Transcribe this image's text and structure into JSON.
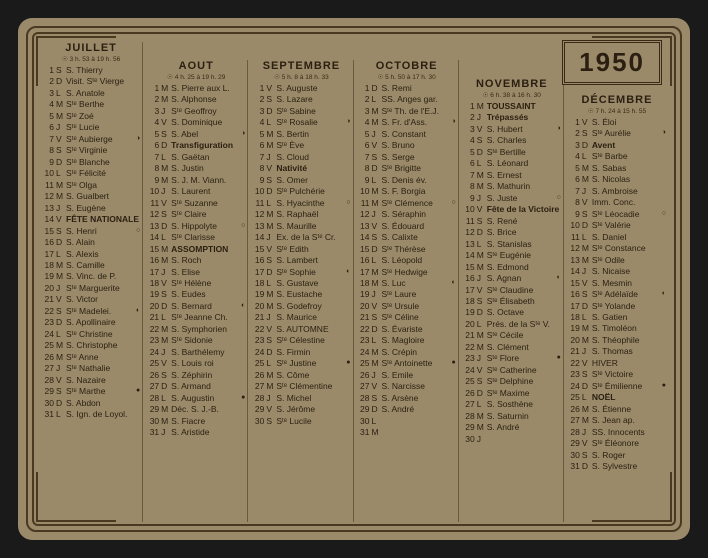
{
  "year": "1950",
  "months": [
    {
      "name": "JUILLET",
      "sunrise": "☉ 3 h. 53 à 19 h. 56",
      "offset": "offset-0",
      "days": [
        {
          "n": "1",
          "w": "S",
          "s": "S. Thierry"
        },
        {
          "n": "2",
          "w": "D",
          "s": "Visit. Sᵗᵉ Vierge"
        },
        {
          "n": "3",
          "w": "L",
          "s": "S. Anatole"
        },
        {
          "n": "4",
          "w": "M",
          "s": "Sᵗᵉ Berthe"
        },
        {
          "n": "5",
          "w": "M",
          "s": "Sᵗᵉ Zoé"
        },
        {
          "n": "6",
          "w": "J",
          "s": "Sᵗᵉ Lucie"
        },
        {
          "n": "7",
          "w": "V",
          "s": "Sᵗᵉ Aubierge",
          "m": "◑"
        },
        {
          "n": "8",
          "w": "S",
          "s": "Sᵗᵉ Virginie"
        },
        {
          "n": "9",
          "w": "D",
          "s": "Sᵗᵉ Blanche"
        },
        {
          "n": "10",
          "w": "L",
          "s": "Sᵗᵉ Félicité"
        },
        {
          "n": "11",
          "w": "M",
          "s": "Sᵗᵉ Olga"
        },
        {
          "n": "12",
          "w": "M",
          "s": "S. Gualbert"
        },
        {
          "n": "13",
          "w": "J",
          "s": "S. Eugène"
        },
        {
          "n": "14",
          "w": "V",
          "s": "FÊTE NATIONALE",
          "b": true
        },
        {
          "n": "15",
          "w": "S",
          "s": "S. Henri",
          "m": "○"
        },
        {
          "n": "16",
          "w": "D",
          "s": "S. Alain"
        },
        {
          "n": "17",
          "w": "L",
          "s": "S. Alexis"
        },
        {
          "n": "18",
          "w": "M",
          "s": "S. Camille"
        },
        {
          "n": "19",
          "w": "M",
          "s": "S. Vinc. de P."
        },
        {
          "n": "20",
          "w": "J",
          "s": "Sᵗᵉ Marguerite"
        },
        {
          "n": "21",
          "w": "V",
          "s": "S. Victor"
        },
        {
          "n": "22",
          "w": "S",
          "s": "Sᵗᵉ Madelei.",
          "m": "◐"
        },
        {
          "n": "23",
          "w": "D",
          "s": "S. Apollinaire"
        },
        {
          "n": "24",
          "w": "L",
          "s": "Sᵗᵉ Christine"
        },
        {
          "n": "25",
          "w": "M",
          "s": "S. Christophe"
        },
        {
          "n": "26",
          "w": "M",
          "s": "Sᵗᵉ Anne"
        },
        {
          "n": "27",
          "w": "J",
          "s": "Sᵗᵉ Nathalie"
        },
        {
          "n": "28",
          "w": "V",
          "s": "S. Nazaire"
        },
        {
          "n": "29",
          "w": "S",
          "s": "Sᵗᵉ Marthe",
          "m": "●"
        },
        {
          "n": "30",
          "w": "D",
          "s": "S. Abdon"
        },
        {
          "n": "31",
          "w": "L",
          "s": "S. Ign. de Loyol."
        }
      ]
    },
    {
      "name": "AOUT",
      "sunrise": "☉ 4 h. 25 à 19 h. 29",
      "offset": "offset-1",
      "days": [
        {
          "n": "1",
          "w": "M",
          "s": "S. Pierre aux L."
        },
        {
          "n": "2",
          "w": "M",
          "s": "S. Alphonse"
        },
        {
          "n": "3",
          "w": "J",
          "s": "Sᵗᵉ Geoffroy"
        },
        {
          "n": "4",
          "w": "V",
          "s": "S. Dominique"
        },
        {
          "n": "5",
          "w": "S",
          "s": "S. Abel",
          "m": "◑"
        },
        {
          "n": "6",
          "w": "D",
          "s": "Transfiguration",
          "b": true
        },
        {
          "n": "7",
          "w": "L",
          "s": "S. Gaëtan"
        },
        {
          "n": "8",
          "w": "M",
          "s": "S. Justin"
        },
        {
          "n": "9",
          "w": "M",
          "s": "S. J. M. Viann."
        },
        {
          "n": "10",
          "w": "J",
          "s": "S. Laurent"
        },
        {
          "n": "11",
          "w": "V",
          "s": "Sᵗᵉ Suzanne"
        },
        {
          "n": "12",
          "w": "S",
          "s": "Sᵗᵉ Claire"
        },
        {
          "n": "13",
          "w": "D",
          "s": "S. Hippolyte",
          "m": "○"
        },
        {
          "n": "14",
          "w": "L",
          "s": "Sᵗᵉ Clarisse"
        },
        {
          "n": "15",
          "w": "M",
          "s": "ASSOMPTION",
          "b": true
        },
        {
          "n": "16",
          "w": "M",
          "s": "S. Roch"
        },
        {
          "n": "17",
          "w": "J",
          "s": "S. Elise"
        },
        {
          "n": "18",
          "w": "V",
          "s": "Sᵗᵉ Hélène"
        },
        {
          "n": "19",
          "w": "S",
          "s": "S. Eudes"
        },
        {
          "n": "20",
          "w": "D",
          "s": "S. Bernard",
          "m": "◐"
        },
        {
          "n": "21",
          "w": "L",
          "s": "Sᵗᵉ Jeanne Ch."
        },
        {
          "n": "22",
          "w": "M",
          "s": "S. Symphorien"
        },
        {
          "n": "23",
          "w": "M",
          "s": "Sᵗᵉ Sidonie"
        },
        {
          "n": "24",
          "w": "J",
          "s": "S. Barthélemy"
        },
        {
          "n": "25",
          "w": "V",
          "s": "S. Louis roi"
        },
        {
          "n": "26",
          "w": "S",
          "s": "S. Zéphirin"
        },
        {
          "n": "27",
          "w": "D",
          "s": "S. Armand"
        },
        {
          "n": "28",
          "w": "L",
          "s": "S. Augustin",
          "m": "●"
        },
        {
          "n": "29",
          "w": "M",
          "s": "Déc. S. J.-B."
        },
        {
          "n": "30",
          "w": "M",
          "s": "S. Fiacre"
        },
        {
          "n": "31",
          "w": "J",
          "s": "S. Aristide"
        }
      ]
    },
    {
      "name": "SEPTEMBRE",
      "sunrise": "☉ 5 h. 8 à 18 h. 33",
      "offset": "offset-1",
      "days": [
        {
          "n": "1",
          "w": "V",
          "s": "S. Auguste"
        },
        {
          "n": "2",
          "w": "S",
          "s": "S. Lazare"
        },
        {
          "n": "3",
          "w": "D",
          "s": "Sᵗᵉ Sabine"
        },
        {
          "n": "4",
          "w": "L",
          "s": "Sᵗᵉ Rosalie",
          "m": "◑"
        },
        {
          "n": "5",
          "w": "M",
          "s": "S. Bertin"
        },
        {
          "n": "6",
          "w": "M",
          "s": "Sᵗᵉ Ève"
        },
        {
          "n": "7",
          "w": "J",
          "s": "S. Cloud"
        },
        {
          "n": "8",
          "w": "V",
          "s": "Nativité",
          "b": true
        },
        {
          "n": "9",
          "w": "S",
          "s": "S. Omer"
        },
        {
          "n": "10",
          "w": "D",
          "s": "Sᵗᵉ Pulchérie"
        },
        {
          "n": "11",
          "w": "L",
          "s": "S. Hyacinthe",
          "m": "○"
        },
        {
          "n": "12",
          "w": "M",
          "s": "S. Raphaël"
        },
        {
          "n": "13",
          "w": "M",
          "s": "S. Maurille"
        },
        {
          "n": "14",
          "w": "J",
          "s": "Ex. de la Sᵗᵉ Cr."
        },
        {
          "n": "15",
          "w": "V",
          "s": "Sᵗᵉ Edith"
        },
        {
          "n": "16",
          "w": "S",
          "s": "S. Lambert"
        },
        {
          "n": "17",
          "w": "D",
          "s": "Sᵗᵉ Sophie",
          "m": "◐"
        },
        {
          "n": "18",
          "w": "L",
          "s": "S. Gustave"
        },
        {
          "n": "19",
          "w": "M",
          "s": "S. Eustache"
        },
        {
          "n": "20",
          "w": "M",
          "s": "S. Godefroy"
        },
        {
          "n": "21",
          "w": "J",
          "s": "S. Maurice"
        },
        {
          "n": "22",
          "w": "V",
          "s": "S. AUTOMNE"
        },
        {
          "n": "23",
          "w": "S",
          "s": "Sᵗᵉ Célestine"
        },
        {
          "n": "24",
          "w": "D",
          "s": "S. Firmin"
        },
        {
          "n": "25",
          "w": "L",
          "s": "Sᵗᵉ Justine",
          "m": "●"
        },
        {
          "n": "26",
          "w": "M",
          "s": "S. Côme"
        },
        {
          "n": "27",
          "w": "M",
          "s": "Sᵗᵉ Clémentine"
        },
        {
          "n": "28",
          "w": "J",
          "s": "S. Michel"
        },
        {
          "n": "29",
          "w": "V",
          "s": "S. Jérôme"
        },
        {
          "n": "30",
          "w": "S",
          "s": "Sᵗᵉ Lucile"
        }
      ]
    },
    {
      "name": "OCTOBRE",
      "sunrise": "☉ 5 h. 50 à 17 h. 30",
      "offset": "offset-1",
      "days": [
        {
          "n": "1",
          "w": "D",
          "s": "S. Remi"
        },
        {
          "n": "2",
          "w": "L",
          "s": "SS. Anges gar."
        },
        {
          "n": "3",
          "w": "M",
          "s": "Sᵗᵉ Th. de l'E.J."
        },
        {
          "n": "4",
          "w": "M",
          "s": "S. Fr. d'Ass.",
          "m": "◑"
        },
        {
          "n": "5",
          "w": "J",
          "s": "S. Constant"
        },
        {
          "n": "6",
          "w": "V",
          "s": "S. Bruno"
        },
        {
          "n": "7",
          "w": "S",
          "s": "S. Serge"
        },
        {
          "n": "8",
          "w": "D",
          "s": "Sᵗᵉ Brigitte"
        },
        {
          "n": "9",
          "w": "L",
          "s": "S. Denis év."
        },
        {
          "n": "10",
          "w": "M",
          "s": "S. F. Borgia"
        },
        {
          "n": "11",
          "w": "M",
          "s": "Sᵗᵉ Clémence",
          "m": "○"
        },
        {
          "n": "12",
          "w": "J",
          "s": "S. Séraphin"
        },
        {
          "n": "13",
          "w": "V",
          "s": "S. Édouard"
        },
        {
          "n": "14",
          "w": "S",
          "s": "S. Calixte"
        },
        {
          "n": "15",
          "w": "D",
          "s": "Sᵗᵉ Thérèse"
        },
        {
          "n": "16",
          "w": "L",
          "s": "S. Léopold"
        },
        {
          "n": "17",
          "w": "M",
          "s": "Sᵗᵉ Hedwige"
        },
        {
          "n": "18",
          "w": "M",
          "s": "S. Luc",
          "m": "◐"
        },
        {
          "n": "19",
          "w": "J",
          "s": "Sᵗᵉ Laure"
        },
        {
          "n": "20",
          "w": "V",
          "s": "Sᵗᵉ Ursule"
        },
        {
          "n": "21",
          "w": "S",
          "s": "Sᵗᵉ Céline"
        },
        {
          "n": "22",
          "w": "D",
          "s": "S. Évariste"
        },
        {
          "n": "23",
          "w": "L",
          "s": "S. Magloire"
        },
        {
          "n": "24",
          "w": "M",
          "s": "S. Crépin"
        },
        {
          "n": "25",
          "w": "M",
          "s": "Sᵗᵉ Antoinette",
          "m": "●"
        },
        {
          "n": "26",
          "w": "J",
          "s": "S. Emile"
        },
        {
          "n": "27",
          "w": "V",
          "s": "S. Narcisse"
        },
        {
          "n": "28",
          "w": "S",
          "s": "S. Arsène"
        },
        {
          "n": "29",
          "w": "D",
          "s": "S. André"
        },
        {
          "n": "30",
          "w": "L",
          "s": ""
        },
        {
          "n": "31",
          "w": "M",
          "s": ""
        }
      ]
    },
    {
      "name": "NOVEMBRE",
      "sunrise": "☉ 6 h. 38 à 16 h. 30",
      "offset": "offset-2",
      "days": [
        {
          "n": "1",
          "w": "M",
          "s": "TOUSSAINT",
          "b": true
        },
        {
          "n": "2",
          "w": "J",
          "s": "Trépassés",
          "b": true
        },
        {
          "n": "3",
          "w": "V",
          "s": "S. Hubert",
          "m": "◑"
        },
        {
          "n": "4",
          "w": "S",
          "s": "S. Charles"
        },
        {
          "n": "5",
          "w": "D",
          "s": "Sᵗᵉ Bertille"
        },
        {
          "n": "6",
          "w": "L",
          "s": "S. Léonard"
        },
        {
          "n": "7",
          "w": "M",
          "s": "S. Ernest"
        },
        {
          "n": "8",
          "w": "M",
          "s": "S. Mathurin"
        },
        {
          "n": "9",
          "w": "J",
          "s": "S. Juste",
          "m": "○"
        },
        {
          "n": "10",
          "w": "V",
          "s": "Fête de la Victoire",
          "b": true
        },
        {
          "n": "11",
          "w": "S",
          "s": "S. René"
        },
        {
          "n": "12",
          "w": "D",
          "s": "S. Brice"
        },
        {
          "n": "13",
          "w": "L",
          "s": "S. Stanislas"
        },
        {
          "n": "14",
          "w": "M",
          "s": "Sᵗᵉ Eugénie"
        },
        {
          "n": "15",
          "w": "M",
          "s": "S. Edmond"
        },
        {
          "n": "16",
          "w": "J",
          "s": "S. Agnan",
          "m": "◐"
        },
        {
          "n": "17",
          "w": "V",
          "s": "Sᵗᵉ Claudine"
        },
        {
          "n": "18",
          "w": "S",
          "s": "Sᵗᵉ Élisabeth"
        },
        {
          "n": "19",
          "w": "D",
          "s": "S. Octave"
        },
        {
          "n": "20",
          "w": "L",
          "s": "Prés. de la Sᵗᵉ V."
        },
        {
          "n": "21",
          "w": "M",
          "s": "Sᵗᵉ Cécile"
        },
        {
          "n": "22",
          "w": "M",
          "s": "S. Clément"
        },
        {
          "n": "23",
          "w": "J",
          "s": "Sᵗᵉ Flore",
          "m": "●"
        },
        {
          "n": "24",
          "w": "V",
          "s": "Sᵗᵉ Catherine"
        },
        {
          "n": "25",
          "w": "S",
          "s": "Sᵗᵉ Delphine"
        },
        {
          "n": "26",
          "w": "D",
          "s": "Sᵗᵉ Maxime"
        },
        {
          "n": "27",
          "w": "L",
          "s": "S. Sosthène"
        },
        {
          "n": "28",
          "w": "M",
          "s": "S. Saturnin"
        },
        {
          "n": "29",
          "w": "M",
          "s": "S. André"
        },
        {
          "n": "30",
          "w": "J",
          "s": ""
        }
      ]
    },
    {
      "name": "DÉCEMBRE",
      "sunrise": "☉ 7 h. 24 à 15 h. 55",
      "offset": "offset-3",
      "days": [
        {
          "n": "1",
          "w": "V",
          "s": "S. Éloi"
        },
        {
          "n": "2",
          "w": "S",
          "s": "Sᵗᵉ Aurélie",
          "m": "◑"
        },
        {
          "n": "3",
          "w": "D",
          "s": "Avent",
          "b": true
        },
        {
          "n": "4",
          "w": "L",
          "s": "Sᵗᵉ Barbe"
        },
        {
          "n": "5",
          "w": "M",
          "s": "S. Sabas"
        },
        {
          "n": "6",
          "w": "M",
          "s": "S. Nicolas"
        },
        {
          "n": "7",
          "w": "J",
          "s": "S. Ambroise"
        },
        {
          "n": "8",
          "w": "V",
          "s": "Imm. Conc."
        },
        {
          "n": "9",
          "w": "S",
          "s": "Sᵗᵉ Léocadie",
          "m": "○"
        },
        {
          "n": "10",
          "w": "D",
          "s": "Sᵗᵉ Valérie"
        },
        {
          "n": "11",
          "w": "L",
          "s": "S. Daniel"
        },
        {
          "n": "12",
          "w": "M",
          "s": "Sᵗᵉ Constance"
        },
        {
          "n": "13",
          "w": "M",
          "s": "Sᵗᵉ Odile"
        },
        {
          "n": "14",
          "w": "J",
          "s": "S. Nicaise"
        },
        {
          "n": "15",
          "w": "V",
          "s": "S. Mesmin"
        },
        {
          "n": "16",
          "w": "S",
          "s": "Sᵗᵉ Adélaïde",
          "m": "◐"
        },
        {
          "n": "17",
          "w": "D",
          "s": "Sᵗᵉ Yolande"
        },
        {
          "n": "18",
          "w": "L",
          "s": "S. Gatien"
        },
        {
          "n": "19",
          "w": "M",
          "s": "S. Timoléon"
        },
        {
          "n": "20",
          "w": "M",
          "s": "S. Théophile"
        },
        {
          "n": "21",
          "w": "J",
          "s": "S. Thomas"
        },
        {
          "n": "22",
          "w": "V",
          "s": "HIVER"
        },
        {
          "n": "23",
          "w": "S",
          "s": "Sᵗᵉ Victoire"
        },
        {
          "n": "24",
          "w": "D",
          "s": "Sᵗᵉ Émilienne",
          "m": "●"
        },
        {
          "n": "25",
          "w": "L",
          "s": "NOËL",
          "b": true
        },
        {
          "n": "26",
          "w": "M",
          "s": "S. Étienne"
        },
        {
          "n": "27",
          "w": "M",
          "s": "S. Jean ap."
        },
        {
          "n": "28",
          "w": "J",
          "s": "SS. Innocents"
        },
        {
          "n": "29",
          "w": "V",
          "s": "Sᵗᵉ Éléonore"
        },
        {
          "n": "30",
          "w": "S",
          "s": "S. Roger"
        },
        {
          "n": "31",
          "w": "D",
          "s": "S. Sylvestre"
        }
      ]
    }
  ]
}
